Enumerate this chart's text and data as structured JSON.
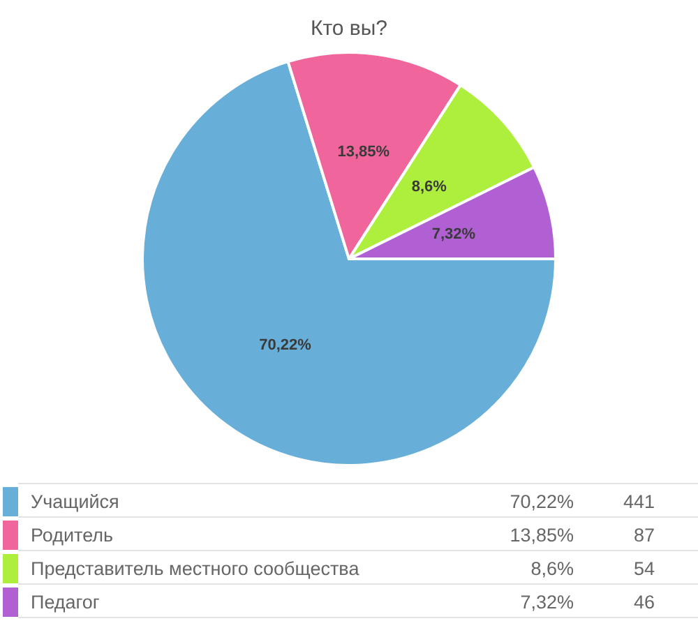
{
  "chart_data": {
    "type": "pie",
    "title": "Кто вы?",
    "categories": [
      "Учащийся",
      "Родитель",
      "Представитель местного сообщества",
      "Педагог"
    ],
    "values": [
      70.22,
      13.85,
      8.6,
      7.32
    ],
    "colors": [
      "#67aed9",
      "#f0669c",
      "#aeee3c",
      "#b160d4"
    ],
    "value_labels": [
      "70,22%",
      "13,85%",
      "8,6%",
      "7,32%"
    ],
    "annotations": [
      "441",
      "87",
      "54",
      "46"
    ],
    "legend": "bottom"
  }
}
